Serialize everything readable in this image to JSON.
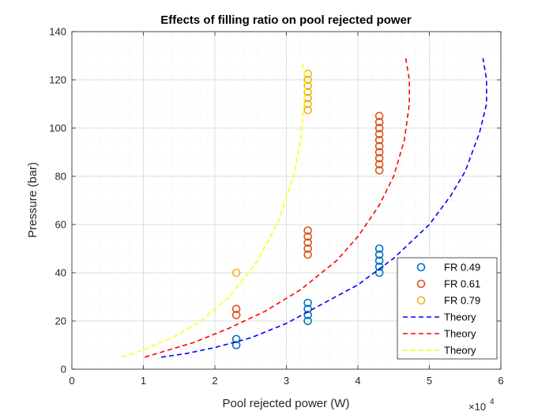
{
  "chart_data": {
    "type": "scatter",
    "title": "Effects of filling ratio on pool rejected power",
    "xlabel": "Pool rejected power (W)",
    "ylabel": "Pressure (bar)",
    "x_exponent_label": "×10",
    "x_exponent_power": "4",
    "xlim": [
      0,
      6
    ],
    "ylim": [
      0,
      140
    ],
    "x_ticks": [
      0,
      1,
      2,
      3,
      4,
      5,
      6
    ],
    "y_ticks": [
      0,
      20,
      40,
      60,
      80,
      100,
      120,
      140
    ],
    "x_minor_step": 0.2,
    "y_minor_step": 5,
    "grid": true,
    "legend_position": "bottom-right",
    "series": [
      {
        "name": "FR 0.49",
        "kind": "markers",
        "color": "#0072BD",
        "points": [
          [
            2.3,
            10
          ],
          [
            2.3,
            12.5
          ],
          [
            3.3,
            20
          ],
          [
            3.3,
            22.5
          ],
          [
            3.3,
            25
          ],
          [
            3.3,
            27.5
          ],
          [
            4.3,
            40
          ],
          [
            4.3,
            42.5
          ],
          [
            4.3,
            45
          ],
          [
            4.3,
            47.5
          ],
          [
            4.3,
            50
          ]
        ]
      },
      {
        "name": "FR 0.61",
        "kind": "markers",
        "color": "#D95319",
        "points": [
          [
            2.3,
            22.5
          ],
          [
            2.3,
            25
          ],
          [
            3.3,
            47.5
          ],
          [
            3.3,
            50
          ],
          [
            3.3,
            52.5
          ],
          [
            3.3,
            55
          ],
          [
            3.3,
            57.5
          ],
          [
            4.3,
            82.5
          ],
          [
            4.3,
            85
          ],
          [
            4.3,
            87.5
          ],
          [
            4.3,
            90
          ],
          [
            4.3,
            92.5
          ],
          [
            4.3,
            95
          ],
          [
            4.3,
            97.5
          ],
          [
            4.3,
            100
          ],
          [
            4.3,
            102.5
          ],
          [
            4.3,
            105
          ]
        ]
      },
      {
        "name": "FR 0.79",
        "kind": "markers",
        "color": "#EDB120",
        "points": [
          [
            2.3,
            40
          ],
          [
            3.3,
            107.5
          ],
          [
            3.3,
            110
          ],
          [
            3.3,
            112.5
          ],
          [
            3.3,
            115
          ],
          [
            3.3,
            117.5
          ],
          [
            3.3,
            120
          ],
          [
            3.3,
            122.5
          ]
        ]
      },
      {
        "name": "Theory",
        "kind": "dashed-line",
        "color": "#0000FF",
        "points": [
          [
            1.25,
            5
          ],
          [
            1.6,
            6.5
          ],
          [
            2.0,
            9
          ],
          [
            2.5,
            13
          ],
          [
            3.0,
            19
          ],
          [
            3.5,
            27
          ],
          [
            4.0,
            35
          ],
          [
            4.5,
            46
          ],
          [
            5.0,
            60
          ],
          [
            5.3,
            72
          ],
          [
            5.5,
            82
          ],
          [
            5.7,
            98
          ],
          [
            5.8,
            110
          ],
          [
            5.8,
            120
          ],
          [
            5.75,
            129
          ]
        ]
      },
      {
        "name": "Theory",
        "kind": "dashed-line",
        "color": "#FF0000",
        "points": [
          [
            1.02,
            5
          ],
          [
            1.3,
            7.5
          ],
          [
            1.7,
            11
          ],
          [
            2.2,
            17
          ],
          [
            2.7,
            24
          ],
          [
            3.2,
            33
          ],
          [
            3.7,
            45
          ],
          [
            4.0,
            55
          ],
          [
            4.3,
            68
          ],
          [
            4.5,
            80
          ],
          [
            4.65,
            95
          ],
          [
            4.72,
            110
          ],
          [
            4.72,
            120
          ],
          [
            4.67,
            129
          ]
        ]
      },
      {
        "name": "Theory",
        "kind": "dashed-line",
        "color": "#FFFF00",
        "points": [
          [
            0.7,
            5
          ],
          [
            1.0,
            8
          ],
          [
            1.4,
            13
          ],
          [
            1.8,
            20
          ],
          [
            2.2,
            30
          ],
          [
            2.6,
            45
          ],
          [
            2.9,
            62
          ],
          [
            3.1,
            80
          ],
          [
            3.2,
            95
          ],
          [
            3.25,
            110
          ],
          [
            3.27,
            120
          ],
          [
            3.22,
            128
          ]
        ]
      }
    ]
  }
}
